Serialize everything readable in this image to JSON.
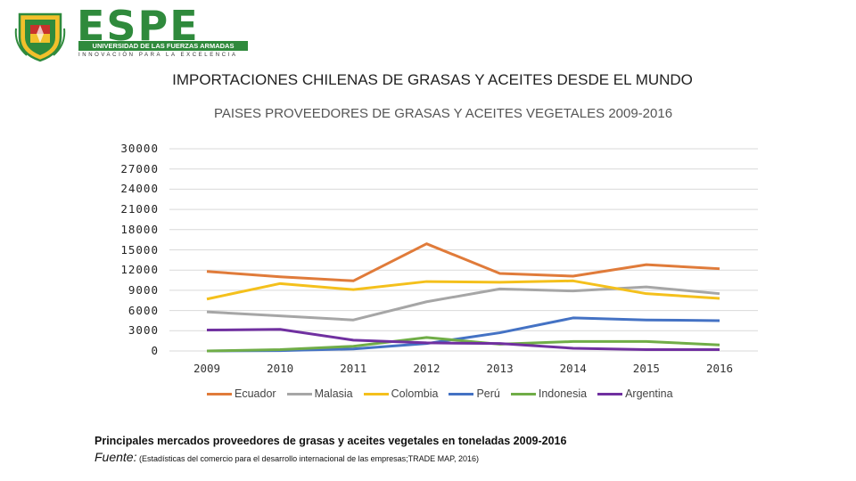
{
  "brand": {
    "name": "ESPE",
    "university": "UNIVERSIDAD DE LAS FUERZAS ARMADAS",
    "motto": "INNOVACIÓN PARA LA EXCELENCIA",
    "colors": {
      "green": "#2f8a3c",
      "yellow": "#f2c02b",
      "red": "#c8322c"
    }
  },
  "slide_title": "IMPORTACIONES CHILENAS DE GRASAS Y ACEITES DESDE EL MUNDO",
  "caption": "Principales mercados proveedores de grasas y aceites vegetales en toneladas 2009-2016",
  "source_lead": "Fuente:",
  "source_text": "(Estadísticas del comercio para el desarrollo internacional de las empresas;TRADE MAP, 2016)",
  "chart_data": {
    "type": "line",
    "title": "PAISES PROVEEDORES DE GRASAS Y ACEITES VEGETALES  2009-2016",
    "x": [
      "2009",
      "2010",
      "2011",
      "2012",
      "2013",
      "2014",
      "2015",
      "2016"
    ],
    "ylim": [
      0,
      30000
    ],
    "yticks": [
      "30000",
      "27000",
      "24000",
      "21000",
      "18000",
      "15000",
      "12000",
      "9000",
      "6000",
      "3000",
      "0"
    ],
    "grid": true,
    "legend_position": "bottom",
    "series": [
      {
        "name": "Ecuador",
        "color": "#e07b3a",
        "values": [
          11800,
          11000,
          10400,
          15900,
          11500,
          11100,
          12800,
          12200
        ]
      },
      {
        "name": "Malasia",
        "color": "#a6a6a6",
        "values": [
          5800,
          5200,
          4600,
          7300,
          9200,
          8900,
          9500,
          8500
        ]
      },
      {
        "name": "Colombia",
        "color": "#f4c01c",
        "values": [
          7700,
          10000,
          9100,
          10300,
          10200,
          10400,
          8500,
          7800
        ]
      },
      {
        "name": "Perú",
        "color": "#4472c4",
        "values": [
          0,
          50,
          300,
          1100,
          2700,
          4900,
          4600,
          4500
        ]
      },
      {
        "name": "Indonesia",
        "color": "#70ad47",
        "values": [
          0,
          200,
          700,
          2000,
          1000,
          1400,
          1400,
          900
        ]
      },
      {
        "name": "Argentina",
        "color": "#7030a0",
        "values": [
          3100,
          3200,
          1600,
          1200,
          1100,
          400,
          200,
          200
        ]
      }
    ]
  }
}
